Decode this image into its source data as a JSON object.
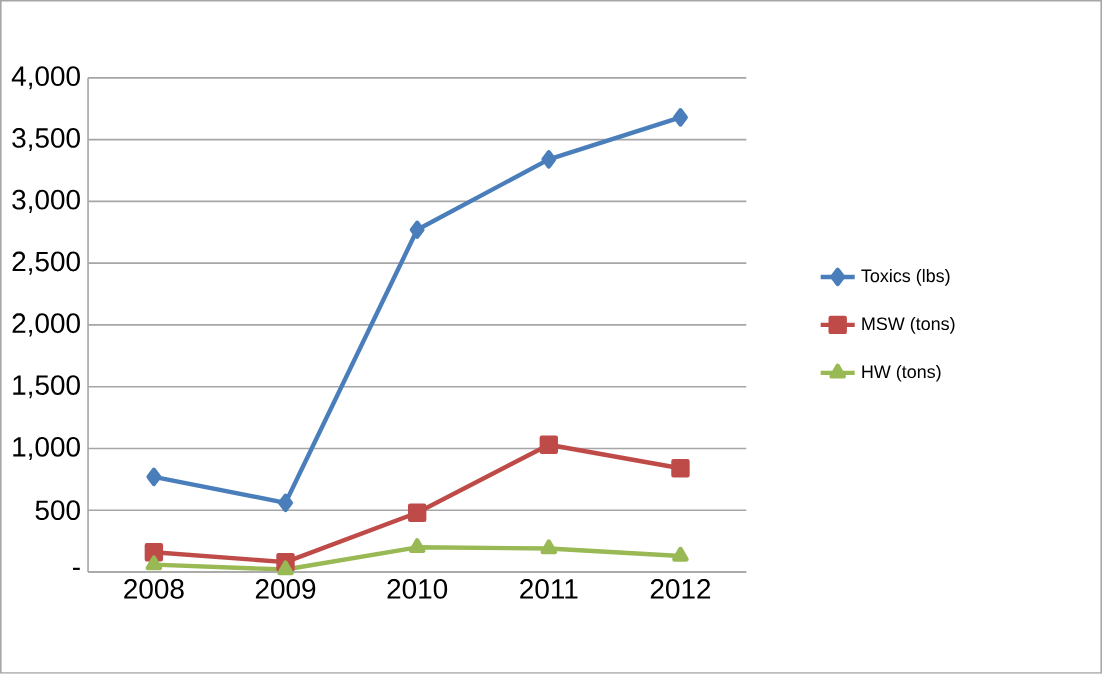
{
  "chart_data": {
    "type": "line",
    "categories": [
      "2008",
      "2009",
      "2010",
      "2011",
      "2012"
    ],
    "series": [
      {
        "name": "Toxics (lbs)",
        "color": "#4a7ebb",
        "marker": "diamond",
        "values": [
          770,
          560,
          2770,
          3340,
          3680
        ]
      },
      {
        "name": "MSW (tons)",
        "color": "#be4b48",
        "marker": "square",
        "values": [
          160,
          80,
          480,
          1030,
          840
        ]
      },
      {
        "name": "HW (tons)",
        "color": "#98b954",
        "marker": "triangle",
        "values": [
          60,
          20,
          200,
          190,
          130
        ]
      }
    ],
    "ylim": [
      0,
      4000
    ],
    "yticks": [
      {
        "value": 0,
        "label": "-"
      },
      500,
      {
        "value": 1000,
        "label": "1,000"
      },
      {
        "value": 1500,
        "label": "1,500"
      },
      {
        "value": 2000,
        "label": "2,000"
      },
      {
        "value": 2500,
        "label": "2,500"
      },
      {
        "value": 3000,
        "label": "3,000"
      },
      {
        "value": 3500,
        "label": "3,500"
      },
      {
        "value": 4000,
        "label": "4,000"
      }
    ],
    "grid": "y",
    "legend": "right",
    "line_style": "solid"
  }
}
